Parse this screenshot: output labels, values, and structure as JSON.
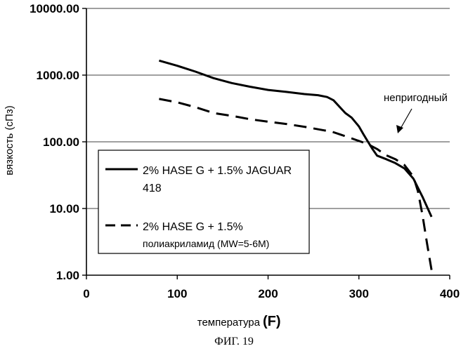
{
  "chart_data": {
    "type": "line",
    "title": "",
    "xlabel": "температура",
    "xunit": "(F)",
    "ylabel": "вязкость  (сПз)",
    "xlim": [
      0,
      400
    ],
    "ylim": [
      1,
      10000
    ],
    "yscale": "log",
    "grid": "horizontal",
    "x_ticks": [
      "0",
      "100",
      "200",
      "300",
      "400"
    ],
    "y_ticks": [
      "1.00",
      "10.00",
      "100.00",
      "1000.00",
      "10000.00"
    ],
    "legend_position": "lower-left",
    "series": [
      {
        "name_line1": "2% HASE G + 1.5% JAGUAR",
        "name_line2": "418",
        "style": "solid",
        "color": "#000000",
        "x": [
          80,
          100,
          120,
          140,
          160,
          180,
          200,
          220,
          240,
          255,
          265,
          272,
          280,
          285,
          292,
          300,
          305,
          310,
          315,
          320,
          330,
          340,
          350,
          360,
          370,
          380
        ],
        "y": [
          1650,
          1380,
          1130,
          900,
          760,
          670,
          600,
          560,
          520,
          500,
          470,
          420,
          320,
          270,
          230,
          170,
          130,
          100,
          78,
          62,
          55,
          48,
          40,
          28,
          15,
          7.5
        ]
      },
      {
        "name_line1": "2% HASE G + 1.5%",
        "name_line2": "полиакриламид (MW=5-6M)",
        "style": "dashed",
        "color": "#000000",
        "x": [
          80,
          100,
          120,
          140,
          160,
          180,
          200,
          220,
          240,
          260,
          270,
          280,
          290,
          300,
          310,
          320,
          330,
          340,
          350,
          360,
          365,
          370,
          375,
          380
        ],
        "y": [
          440,
          390,
          330,
          270,
          245,
          218,
          200,
          185,
          168,
          150,
          142,
          128,
          115,
          103,
          92,
          78,
          63,
          55,
          45,
          30,
          18,
          8,
          3,
          1.2
        ]
      }
    ],
    "annotations": [
      {
        "text": "непригодный",
        "arrow_to_x": 325,
        "arrow_to_y": 90
      }
    ]
  },
  "figure_caption": "ФИГ. 19"
}
